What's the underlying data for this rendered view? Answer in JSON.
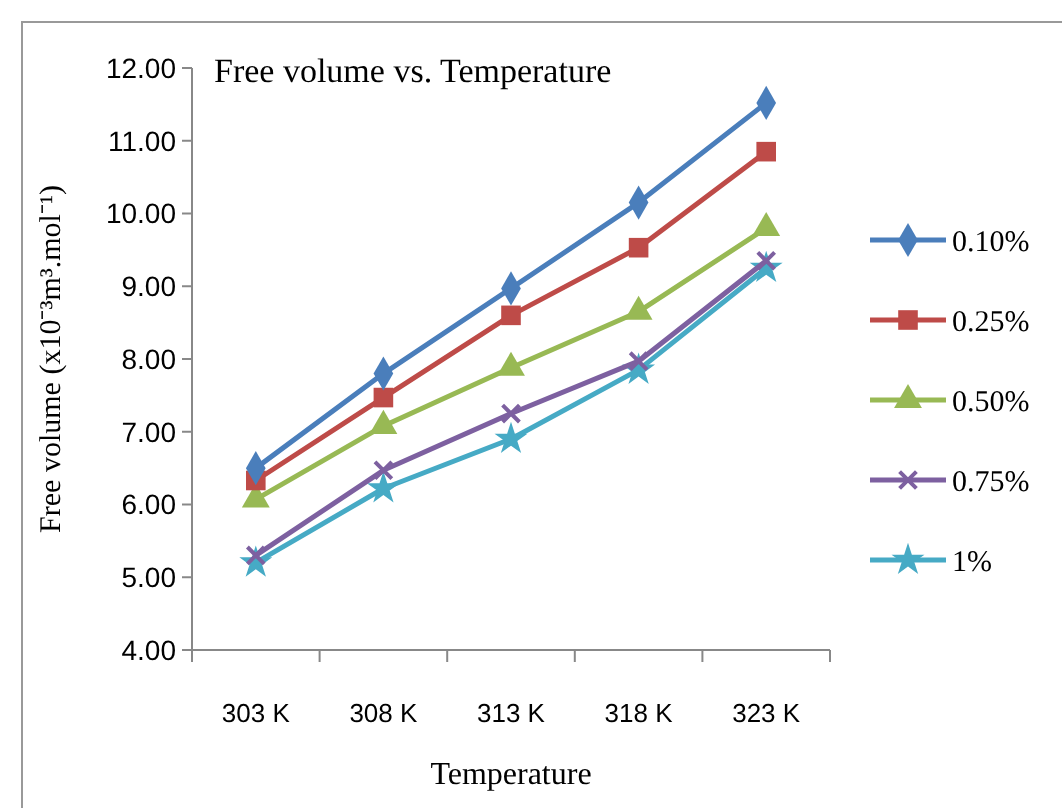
{
  "chart_data": {
    "type": "line",
    "title": "Free volume vs. Temperature",
    "xlabel": "Temperature",
    "ylabel": "Free volume (x10⁻³m³.mol⁻¹)",
    "categories": [
      "303 K",
      "308 K",
      "313 K",
      "318 K",
      "323 K"
    ],
    "series": [
      {
        "name": "0.10%",
        "color": "#4a7ebb",
        "marker": "diamond",
        "values": [
          6.5,
          7.8,
          8.97,
          10.15,
          11.52
        ]
      },
      {
        "name": "0.25%",
        "color": "#be4b48",
        "marker": "square",
        "values": [
          6.33,
          7.47,
          8.6,
          9.53,
          10.85
        ]
      },
      {
        "name": "0.50%",
        "color": "#98b954",
        "marker": "triangle",
        "values": [
          6.07,
          7.08,
          7.88,
          8.65,
          9.8
        ]
      },
      {
        "name": "0.75%",
        "color": "#7d60a0",
        "marker": "cross",
        "values": [
          5.3,
          6.47,
          7.25,
          7.97,
          9.35
        ]
      },
      {
        "name": "1%",
        "color": "#46aac5",
        "marker": "star",
        "values": [
          5.2,
          6.22,
          6.9,
          7.85,
          9.25
        ]
      }
    ],
    "ylim": [
      4,
      12
    ],
    "yticks": [
      {
        "value": 4,
        "label": "4.00"
      },
      {
        "value": 5,
        "label": "5.00"
      },
      {
        "value": 6,
        "label": "6.00"
      },
      {
        "value": 7,
        "label": "7.00"
      },
      {
        "value": 8,
        "label": "8.00"
      },
      {
        "value": 9,
        "label": "9.00"
      },
      {
        "value": 10,
        "label": "10.00"
      },
      {
        "value": 11,
        "label": "11.00"
      },
      {
        "value": 12,
        "label": "12.00"
      }
    ],
    "grid": false,
    "legend": "right",
    "line_style": "solid"
  }
}
